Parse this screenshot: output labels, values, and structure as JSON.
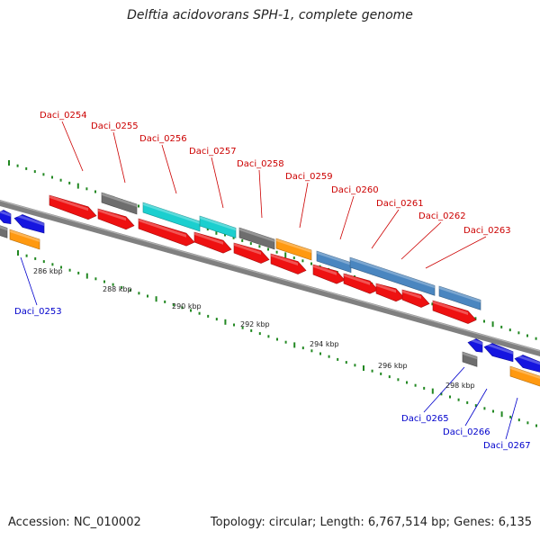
{
  "title": "Delftia acidovorans SPH-1, complete genome",
  "footer": {
    "accession": "Accession: NC_010002",
    "summary": "Topology: circular; Length: 6,767,514 bp; Genes: 6,135"
  },
  "colors": {
    "label_top": "#cc0000",
    "label_bottom": "#0000cc",
    "backbone": "#808080",
    "ticks": "#228822",
    "red": "#ee1111",
    "gray": "#6e6e6e",
    "cyan": "#1ccfcf",
    "orange": "#ff9910",
    "steel": "#4a86c0",
    "blue": "#1515e0"
  },
  "axis_ticks": [
    "286 kbp",
    "288 kbp",
    "290 kbp",
    "292 kbp",
    "294 kbp",
    "296 kbp",
    "298 kbp"
  ],
  "labels_top": [
    "Daci_0254",
    "Daci_0255",
    "Daci_0256",
    "Daci_0257",
    "Daci_0258",
    "Daci_0259",
    "Daci_0260",
    "Daci_0261",
    "Daci_0262",
    "Daci_0263"
  ],
  "labels_bottom": [
    "Daci_0253",
    "Daci_0265",
    "Daci_0266",
    "Daci_0267"
  ]
}
